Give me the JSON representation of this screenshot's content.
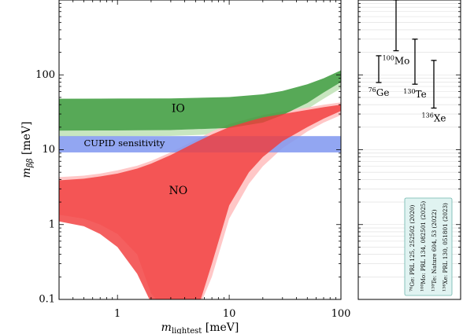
{
  "chart_data": [
    {
      "type": "area",
      "xlabel": "m",
      "xlabel_sub": "lightest",
      "xlabel_unit": "[meV]",
      "ylabel": "m",
      "ylabel_sub": "ββ",
      "ylabel_unit": "[meV]",
      "xscale": "log",
      "yscale": "log",
      "xlim": [
        0.3,
        100
      ],
      "ylim": [
        0.1,
        1000
      ],
      "xticks": [
        {
          "value": 1,
          "label": "1"
        },
        {
          "value": 10,
          "label": "10"
        },
        {
          "value": 100,
          "label": "100"
        }
      ],
      "yticks": [
        {
          "value": 0.1,
          "label": "0.1"
        },
        {
          "value": 1,
          "label": "1"
        },
        {
          "value": 10,
          "label": "10"
        },
        {
          "value": 100,
          "label": "100"
        }
      ],
      "regions": [
        {
          "name": "IO",
          "label": "IO",
          "color": "#3a9a3a",
          "label_at": [
            3.5,
            35
          ],
          "x": [
            0.3,
            1,
            3,
            10,
            20,
            30,
            50,
            70,
            100
          ],
          "y_low": [
            18,
            18.1,
            18.3,
            19.5,
            23,
            29,
            42,
            58,
            80
          ],
          "y_high": [
            48,
            48.2,
            48.5,
            50.5,
            55,
            61,
            75,
            90,
            115
          ],
          "halo_color": "#c8e6c0",
          "halo_y_low": [
            15,
            15.1,
            15.3,
            16.3,
            19.5,
            24.5,
            35,
            48,
            66
          ]
        },
        {
          "name": "NO",
          "label": "NO",
          "color": "#f23c3c",
          "label_at": [
            3.5,
            2.8
          ],
          "x": [
            0.3,
            0.5,
            0.7,
            1,
            1.5,
            2,
            3,
            5,
            7,
            10,
            15,
            20,
            30,
            50,
            70,
            100
          ],
          "y_upper": [
            3.9,
            4.1,
            4.4,
            4.8,
            5.6,
            6.5,
            8.5,
            12.5,
            16,
            20,
            24,
            27,
            30,
            34,
            37,
            40
          ],
          "y_lower": [
            1.1,
            0.95,
            0.75,
            0.5,
            0.22,
            0.09,
            0.06,
            0.06,
            0.3,
            1.8,
            5,
            8,
            13,
            20,
            26,
            33
          ],
          "halo_color": "#ffc7c7",
          "halo_y_upper": [
            4.3,
            4.5,
            4.8,
            5.3,
            6.1,
            7.1,
            9.2,
            13.5,
            17.5,
            22,
            26,
            29,
            32.5,
            36.5,
            40,
            43
          ],
          "halo_y_lower": [
            1.35,
            1.2,
            1,
            0.75,
            0.4,
            0.12,
            0.06,
            0.06,
            0.2,
            1.2,
            3.5,
            6,
            10.5,
            17.5,
            23,
            29
          ]
        }
      ],
      "bands": [
        {
          "name": "CUPID sensitivity",
          "label": "CUPID sensitivity",
          "y_low": 9.2,
          "y_high": 15.2,
          "color": "#7f96f0",
          "label_at": [
            0.5,
            12
          ]
        }
      ]
    },
    {
      "type": "scatter",
      "ylim": [
        0.1,
        1000
      ],
      "yscale": "log",
      "isotopes": [
        {
          "mass_number": "76",
          "element": "Ge",
          "low": 79,
          "high": 180,
          "column": 0
        },
        {
          "mass_number": "100",
          "element": "Mo",
          "low": 210,
          "high": 1000,
          "column": 1
        },
        {
          "mass_number": "130",
          "element": "Te",
          "low": 75,
          "high": 300,
          "column": 2
        },
        {
          "mass_number": "136",
          "element": "Xe",
          "low": 36,
          "high": 156,
          "column": 3
        }
      ],
      "legend": {
        "position": "bottom-right",
        "entries": [
          {
            "sup": "76",
            "text": "Ge: PRL 125, 252502 (2020)"
          },
          {
            "sup": "100",
            "text": "Mo: PRL 134, 082501 (2025)"
          },
          {
            "sup": "130",
            "text": "Te: Nature 604, 53 (2022)"
          },
          {
            "sup": "136",
            "text": "Xe: PRL 130, 051801 (2023)"
          }
        ]
      }
    }
  ]
}
